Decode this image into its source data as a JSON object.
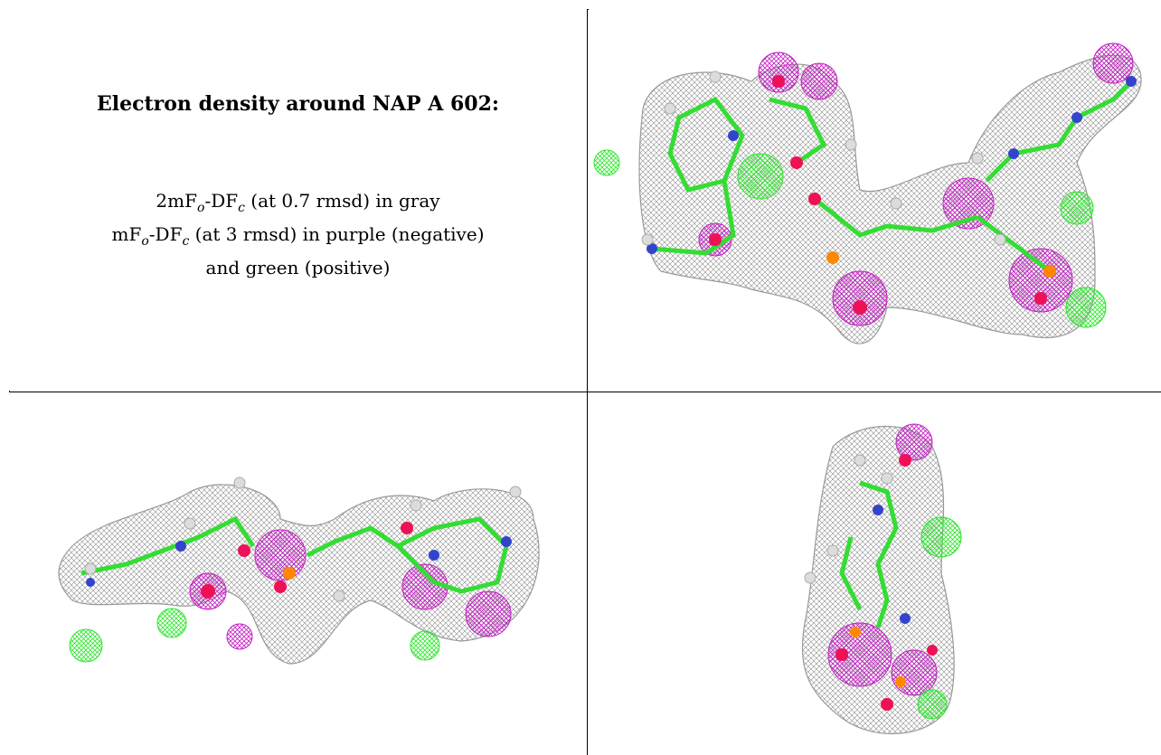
{
  "title": "Electron density around NAP A 602:",
  "legend": {
    "line1_a": "2mF",
    "line1_sub1": "o",
    "line1_b": "-DF",
    "line1_sub2": "c",
    "line1_c": " (at 0.7 rmsd) in gray",
    "line2_a": "mF",
    "line2_sub1": "o",
    "line2_b": "-DF",
    "line2_sub2": "c",
    "line2_c": " (at 3 rmsd) in purple (negative)",
    "line3": "and green (positive)"
  },
  "colors": {
    "mesh_2fofc": "#8c8c8c",
    "mesh_negative": "#c21ec2",
    "mesh_positive": "#2ee62e",
    "carbon": "#33dd33",
    "nitrogen": "#3344cc",
    "oxygen": "#ee1155",
    "phosphorus": "#ff8800",
    "hydrogen": "#d8d8d8"
  },
  "views": [
    {
      "id": "view-1",
      "description_icon": "molecule-density-icon"
    },
    {
      "id": "view-2",
      "description_icon": "molecule-density-icon"
    },
    {
      "id": "view-3",
      "description_icon": "molecule-density-icon"
    }
  ]
}
